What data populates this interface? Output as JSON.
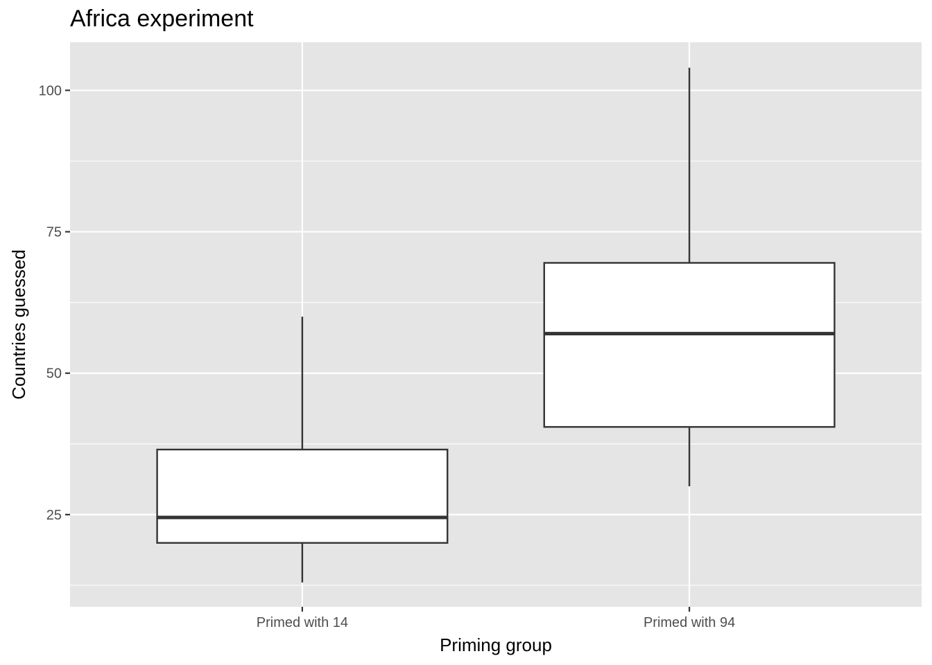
{
  "chart_data": {
    "type": "boxplot",
    "title": "Africa experiment",
    "xlabel": "Priming group",
    "ylabel": "Countries guessed",
    "categories": [
      "Primed with 14",
      "Primed with 94"
    ],
    "boxes": [
      {
        "category": "Primed with 14",
        "whisker_low": 13,
        "q1": 20,
        "median": 24.5,
        "q3": 36.5,
        "whisker_high": 60
      },
      {
        "category": "Primed with 94",
        "whisker_low": 30,
        "q1": 40.5,
        "median": 57,
        "q3": 69.5,
        "whisker_high": 104
      }
    ],
    "y_ticks": [
      25,
      50,
      75,
      100
    ],
    "y_tick_labels": [
      "25",
      "50",
      "75",
      "100"
    ],
    "ylim": [
      8.7,
      108.5
    ],
    "grid": true,
    "colors": {
      "panel": "#e5e5e5",
      "grid": "#ffffff",
      "box_fill": "#ffffff",
      "box_line": "#333333",
      "text": "#4d4d4d"
    }
  }
}
